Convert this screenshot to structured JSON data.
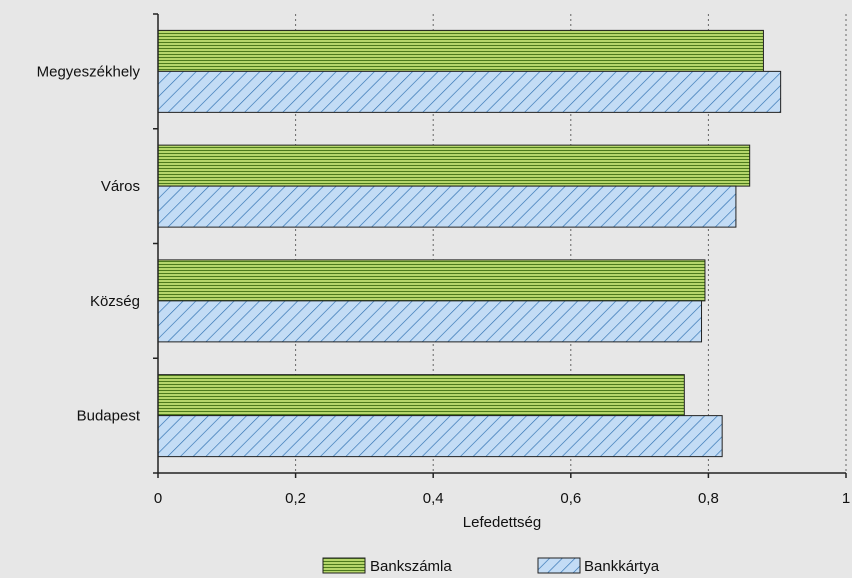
{
  "chart_data": {
    "type": "bar",
    "orientation": "horizontal",
    "categories": [
      "Megyeszékhely",
      "Város",
      "Község",
      "Budapest"
    ],
    "series": [
      {
        "name": "Bankszámla",
        "values": [
          0.88,
          0.86,
          0.795,
          0.765
        ]
      },
      {
        "name": "Bankkártya",
        "values": [
          0.905,
          0.84,
          0.79,
          0.82
        ]
      }
    ],
    "xlabel": "Lefedettség",
    "xlim": [
      0,
      1
    ],
    "xticks": [
      0,
      0.2,
      0.4,
      0.6,
      0.8,
      1
    ],
    "xtick_labels": [
      "0",
      "0,2",
      "0,4",
      "0,6",
      "0,8",
      "1"
    ],
    "grid": "vertical dotted",
    "legend_position": "bottom-center",
    "colors": {
      "Bankszámla_fill": "#b5d66b",
      "Bankszámla_stripe": "#4c7a1c",
      "Bankkártya_fill": "#c3dcf5",
      "Bankkártya_stripe": "#2c6fb0",
      "background": "#e7e7e7"
    }
  }
}
